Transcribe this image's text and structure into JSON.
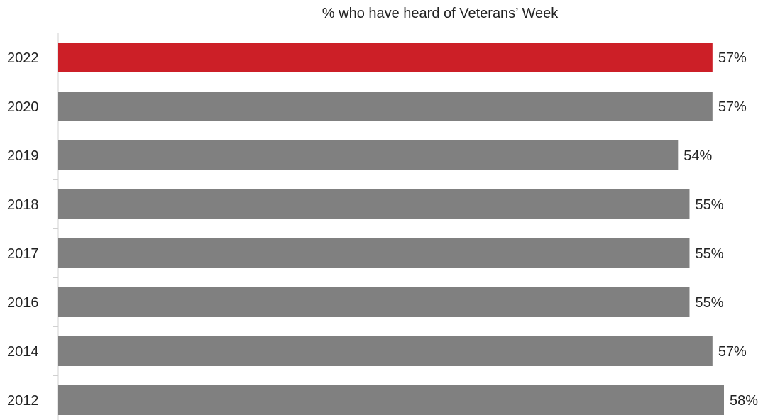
{
  "chart_data": {
    "type": "bar",
    "orientation": "horizontal",
    "title": "% who have heard of Veterans’ Week",
    "categories": [
      "2022",
      "2020",
      "2019",
      "2018",
      "2017",
      "2016",
      "2014",
      "2012"
    ],
    "values": [
      57,
      57,
      54,
      55,
      55,
      55,
      57,
      58
    ],
    "value_labels": [
      "57%",
      "57%",
      "54%",
      "55%",
      "55%",
      "55%",
      "57%",
      "58%"
    ],
    "xlabel": "",
    "ylabel": "",
    "xlim": [
      0,
      58
    ],
    "grid": false,
    "legend": "none",
    "highlight_category": "2022",
    "colors": {
      "highlight": "#cc1f27",
      "default": "#808080",
      "axis": "#d0d0d0",
      "text": "#222222"
    }
  }
}
